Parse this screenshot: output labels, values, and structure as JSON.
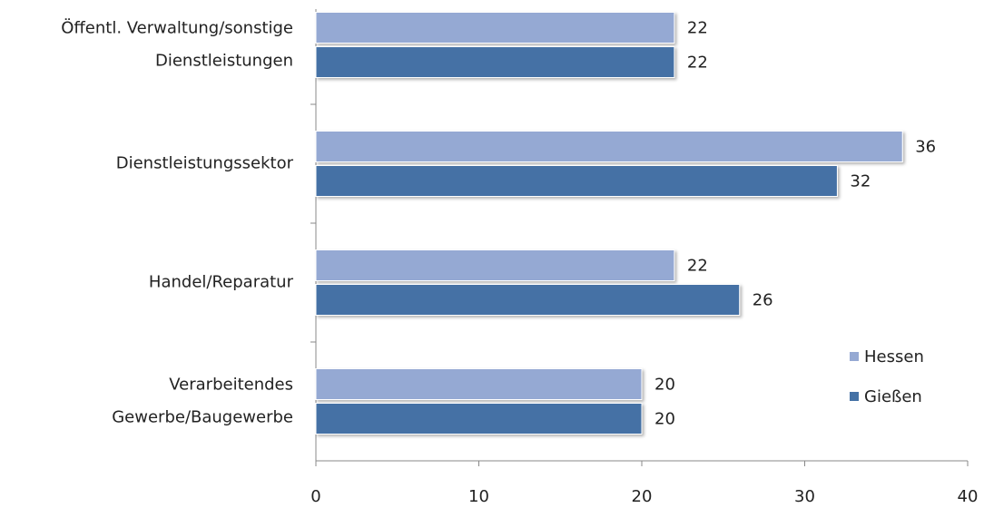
{
  "chart_data": {
    "type": "bar",
    "orientation": "horizontal",
    "categories": [
      [
        "Öffentl. Verwaltung/sonstige",
        "Dienstleistungen"
      ],
      [
        "Dienstleistungssektor"
      ],
      [
        "Handel/Reparatur"
      ],
      [
        "Verarbeitendes",
        "Gewerbe/Baugewerbe"
      ]
    ],
    "series": [
      {
        "name": "Hessen",
        "color": "#95a9d3",
        "values": [
          22,
          36,
          22,
          20
        ]
      },
      {
        "name": "Gießen",
        "color": "#4471a5",
        "values": [
          22,
          32,
          26,
          20
        ]
      }
    ],
    "xlim": [
      0,
      40
    ],
    "xticks": [
      0,
      10,
      20,
      30,
      40
    ],
    "grid": false,
    "legend": "right"
  }
}
